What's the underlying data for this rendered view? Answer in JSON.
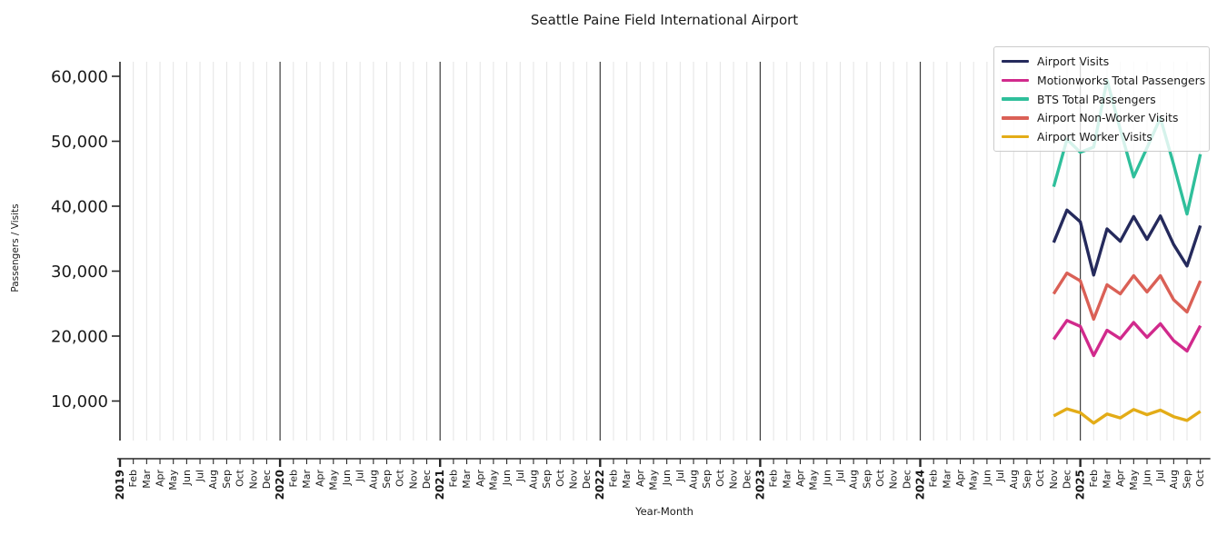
{
  "title": "Seattle Paine Field International Airport",
  "chart_data": {
    "type": "line",
    "title": "Seattle Paine Field International Airport",
    "xlabel": "Year-Month",
    "ylabel": "Passengers / Visits",
    "grid": "vertical monthly gridlines, dark line at each January",
    "legend_position": "upper right",
    "x_axis": {
      "start": "2019-01",
      "end": "2025-10",
      "year_labels": [
        "2019",
        "2020",
        "2021",
        "2022",
        "2023",
        "2024",
        "2025"
      ],
      "month_labels": [
        "Feb",
        "Mar",
        "Apr",
        "May",
        "Jun",
        "Jul",
        "Aug",
        "Sep",
        "Oct",
        "Nov",
        "Dec"
      ]
    },
    "y_ticks": [
      10000,
      20000,
      30000,
      40000,
      50000,
      60000
    ],
    "ylim": [
      3900,
      62300
    ],
    "x": [
      "2024-11",
      "2024-12",
      "2025-01",
      "2025-02",
      "2025-03",
      "2025-04",
      "2025-05",
      "2025-06",
      "2025-07",
      "2025-08",
      "2025-09",
      "2025-10"
    ],
    "series": [
      {
        "name": "Airport Visits",
        "color": "#252a5c",
        "values": [
          34400,
          39400,
          37600,
          29400,
          36500,
          34600,
          38400,
          34900,
          38500,
          34100,
          30800,
          37000
        ]
      },
      {
        "name": "Motionworks Total Passengers",
        "color": "#d12a8c",
        "values": [
          19500,
          22400,
          21500,
          17000,
          20900,
          19600,
          22100,
          19800,
          21900,
          19300,
          17700,
          21600
        ]
      },
      {
        "name": "BTS Total Passengers",
        "color": "#2fbf9b",
        "values": [
          43000,
          50300,
          48300,
          49100,
          59400,
          51800,
          44500,
          49000,
          53600,
          46400,
          38800,
          48000
        ]
      },
      {
        "name": "Airport Non-Worker Visits",
        "color": "#da6056",
        "values": [
          26500,
          29700,
          28500,
          22600,
          27900,
          26500,
          29300,
          26800,
          29300,
          25600,
          23700,
          28500
        ]
      },
      {
        "name": "Airport Worker Visits",
        "color": "#e3ac17",
        "values": [
          7700,
          8800,
          8200,
          6600,
          8000,
          7400,
          8700,
          7900,
          8600,
          7600,
          7000,
          8400
        ]
      }
    ]
  },
  "colors": {
    "grid_month": "#e4e4e4",
    "grid_year": "#3c3c3c",
    "spine": "#262626",
    "text": "#1a1a1a"
  }
}
